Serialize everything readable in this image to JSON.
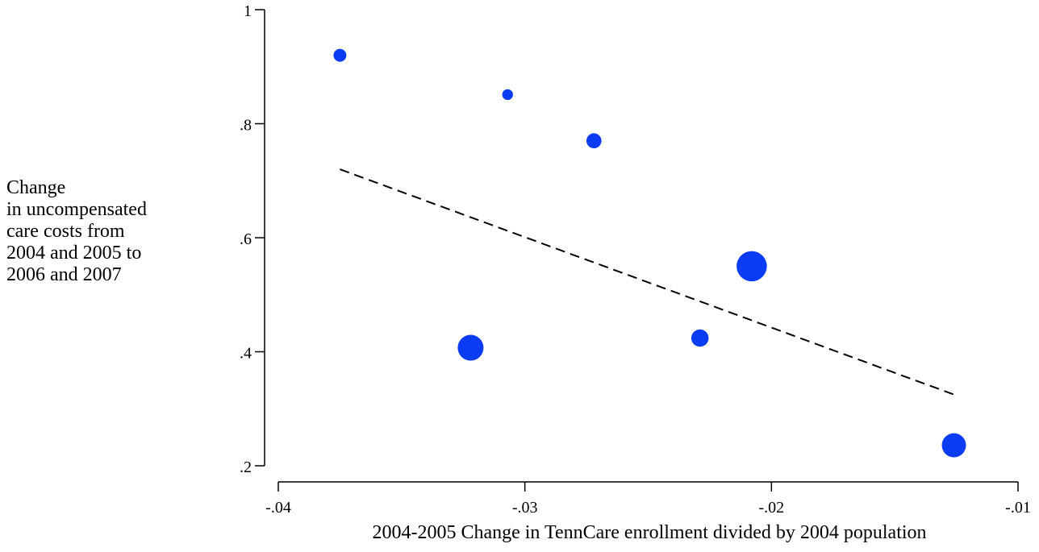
{
  "chart_data": {
    "type": "scatter",
    "title": "",
    "xlabel": "2004-2005 Change in TennCare enrollment divided by 2004 population",
    "ylabel_lines": [
      "Change",
      "in uncompensated",
      "care costs from",
      "2004 and 2005 to",
      "2006 and 2007"
    ],
    "xlim": [
      -0.04,
      -0.01
    ],
    "ylim": [
      0.2,
      1.0
    ],
    "x_ticks": [
      -0.04,
      -0.03,
      -0.02,
      -0.01
    ],
    "x_tick_labels": [
      "-.04",
      "-.03",
      "-.02",
      "-.01"
    ],
    "y_ticks": [
      0.2,
      0.4,
      0.6,
      0.8,
      1.0
    ],
    "y_tick_labels": [
      ".2",
      ".4",
      ".6",
      ".8",
      "1"
    ],
    "grid": false,
    "marker_color": "#0a3cf5",
    "points": [
      {
        "x": -0.0375,
        "y": 0.92,
        "weight": 1.0
      },
      {
        "x": -0.0307,
        "y": 0.851,
        "weight": 0.7
      },
      {
        "x": -0.0272,
        "y": 0.77,
        "weight": 1.35
      },
      {
        "x": -0.0229,
        "y": 0.424,
        "weight": 1.8
      },
      {
        "x": -0.0208,
        "y": 0.55,
        "weight": 5.5
      },
      {
        "x": -0.0322,
        "y": 0.407,
        "weight": 4.0
      },
      {
        "x": -0.0126,
        "y": 0.236,
        "weight": 3.5
      }
    ],
    "fit_line": {
      "style": "dashed",
      "x": [
        -0.0375,
        -0.0126
      ],
      "y": [
        0.72,
        0.325
      ]
    }
  }
}
